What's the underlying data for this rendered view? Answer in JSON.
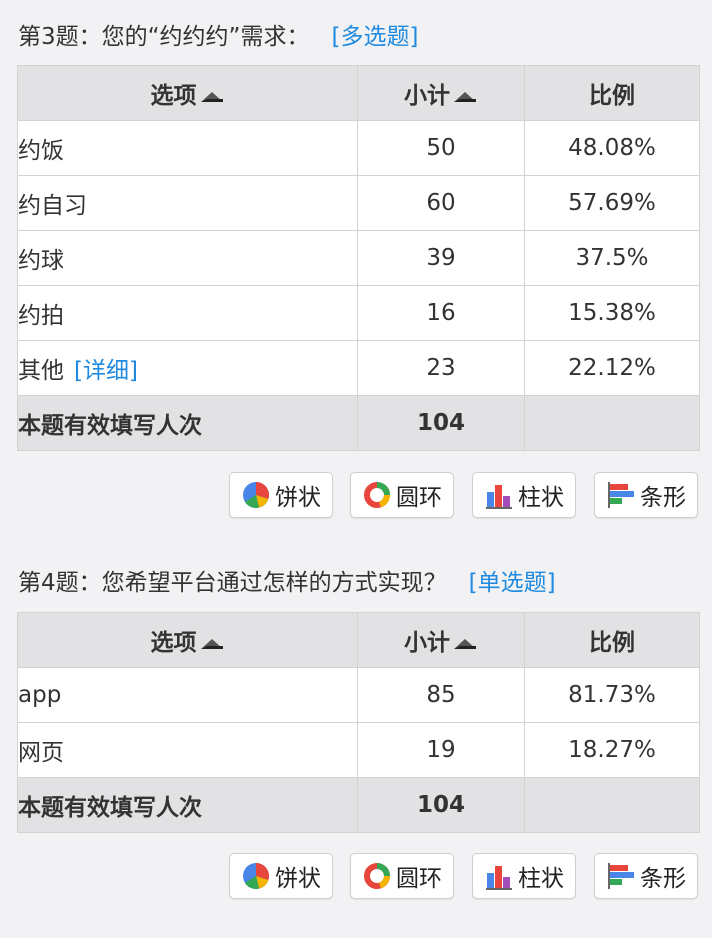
{
  "questions": [
    {
      "header": "第3题：您的“约约约”需求：",
      "type_label": "[多选题]",
      "columns": {
        "option": "选项",
        "count": "小计",
        "ratio": "比例"
      },
      "rows": [
        {
          "option": "约饭",
          "count": "50",
          "ratio": "48.08%"
        },
        {
          "option": "约自习",
          "count": "60",
          "ratio": "57.69%"
        },
        {
          "option": "约球",
          "count": "39",
          "ratio": "37.5%"
        },
        {
          "option": "约拍",
          "count": "16",
          "ratio": "15.38%"
        },
        {
          "option": "其他",
          "detail": "[详细]",
          "count": "23",
          "ratio": "22.12%"
        }
      ],
      "total": {
        "label": "本题有效填写人次",
        "count": "104"
      }
    },
    {
      "header": "第4题：您希望平台通过怎样的方式实现？",
      "type_label": "[单选题]",
      "columns": {
        "option": "选项",
        "count": "小计",
        "ratio": "比例"
      },
      "rows": [
        {
          "option": "app",
          "count": "85",
          "ratio": "81.73%"
        },
        {
          "option": "网页",
          "count": "19",
          "ratio": "18.27%"
        }
      ],
      "total": {
        "label": "本题有效填写人次",
        "count": "104"
      }
    }
  ],
  "chart_buttons": {
    "pie": "饼状",
    "ring": "圆环",
    "column": "柱状",
    "bar": "条形"
  },
  "colors": {
    "link": "#1f8ae0",
    "header_bg": "#e2e2e4",
    "page_bg": "#f2f2f4",
    "border": "#d3d3d3"
  },
  "icons": {
    "sort": "sort-triangle-icon",
    "pie": "pie-chart-icon",
    "ring": "ring-chart-icon",
    "column": "column-chart-icon",
    "bar": "bar-chart-icon"
  }
}
